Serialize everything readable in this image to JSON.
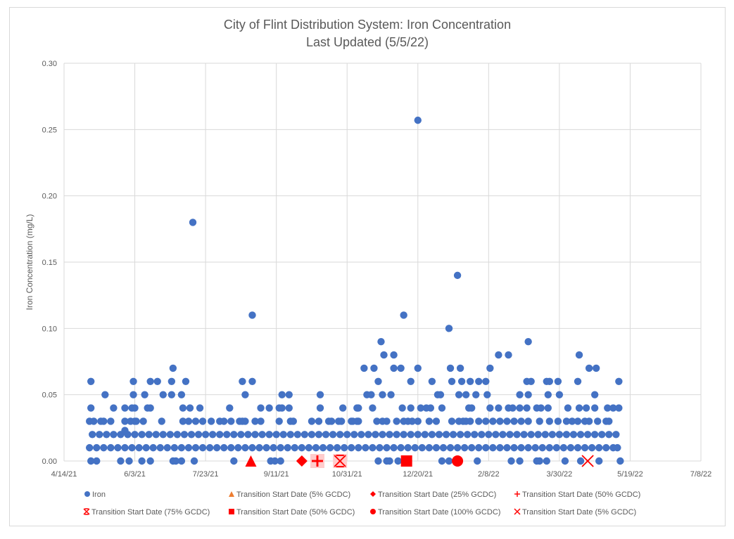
{
  "chart_data": {
    "type": "scatter",
    "title": "City of Flint Distribution System: Iron Concentration",
    "subtitle": "Last Updated (5/5/22)",
    "xlabel": "",
    "ylabel": "Iron Concentration (mg/L)",
    "xlim": [
      "4/14/21",
      "7/8/22"
    ],
    "ylim": [
      0,
      0.3
    ],
    "x_ticks": [
      "4/14/21",
      "6/3/21",
      "7/23/21",
      "9/11/21",
      "10/31/21",
      "12/20/21",
      "2/8/22",
      "3/30/22",
      "5/19/22",
      "7/8/22"
    ],
    "y_ticks": [
      "0.00",
      "0.05",
      "0.10",
      "0.15",
      "0.20",
      "0.25",
      "0.30"
    ],
    "grid": true,
    "legend_position": "bottom",
    "colors": {
      "iron": "#4472C4",
      "marker": "#FF0000",
      "legend_triangle": "#ED7D31",
      "highlight": "#FFCCCC",
      "grid": "#D9D9D9",
      "text": "#595959"
    },
    "iron_series": {
      "name": "Iron",
      "points_by_value": [
        {
          "y": 0.0,
          "x": [
            "5/3/21",
            "5/7/21",
            "5/24/21",
            "5/30/21",
            "6/8/21",
            "6/14/21",
            "6/30/21",
            "7/2/21",
            "7/6/21",
            "7/15/21",
            "8/12/21",
            "9/7/21",
            "9/10/21",
            "9/14/21",
            "11/22/21",
            "11/28/21",
            "11/30/21",
            "12/6/21",
            "1/6/22",
            "1/11/22",
            "1/31/22",
            "2/24/22",
            "3/2/22",
            "3/14/22",
            "3/16/22",
            "3/21/22",
            "4/3/22",
            "4/14/22",
            "4/27/22",
            "5/12/22"
          ]
        },
        {
          "y": 0.01,
          "x": [
            "5/2/21",
            "5/7/21",
            "5/12/21",
            "5/17/21",
            "5/22/21",
            "5/27/21",
            "6/1/21",
            "6/6/21",
            "6/11/21",
            "6/16/21",
            "6/21/21",
            "6/26/21",
            "7/1/21",
            "7/6/21",
            "7/11/21",
            "7/16/21",
            "7/21/21",
            "7/26/21",
            "7/31/21",
            "8/5/21",
            "8/10/21",
            "8/15/21",
            "8/20/21",
            "8/25/21",
            "8/30/21",
            "9/4/21",
            "9/9/21",
            "9/14/21",
            "9/19/21",
            "9/24/21",
            "9/29/21",
            "10/4/21",
            "10/9/21",
            "10/14/21",
            "10/19/21",
            "10/24/21",
            "10/29/21",
            "11/3/21",
            "11/8/21",
            "11/13/21",
            "11/18/21",
            "11/23/21",
            "11/28/21",
            "12/3/21",
            "12/8/21",
            "12/13/21",
            "12/18/21",
            "12/23/21",
            "12/28/21",
            "1/2/22",
            "1/7/22",
            "1/12/22",
            "1/17/22",
            "1/22/22",
            "1/27/22",
            "2/1/22",
            "2/6/22",
            "2/11/22",
            "2/16/22",
            "2/21/22",
            "2/26/22",
            "3/3/22",
            "3/8/22",
            "3/13/22",
            "3/18/22",
            "3/23/22",
            "3/28/22",
            "4/2/22",
            "4/7/22",
            "4/12/22",
            "4/17/22",
            "4/22/22",
            "4/27/22",
            "5/2/22",
            "5/7/22",
            "5/10/22"
          ]
        },
        {
          "y": 0.02,
          "x": [
            "5/4/21",
            "5/9/21",
            "5/14/21",
            "5/19/21",
            "5/24/21",
            "5/29/21",
            "6/3/21",
            "6/8/21",
            "6/13/21",
            "6/18/21",
            "6/23/21",
            "6/28/21",
            "7/3/21",
            "7/8/21",
            "7/13/21",
            "7/18/21",
            "7/23/21",
            "7/28/21",
            "8/2/21",
            "8/7/21",
            "8/12/21",
            "8/17/21",
            "8/22/21",
            "8/27/21",
            "9/1/21",
            "9/6/21",
            "9/11/21",
            "9/16/21",
            "9/21/21",
            "9/26/21",
            "10/1/21",
            "10/6/21",
            "10/11/21",
            "10/16/21",
            "10/21/21",
            "10/26/21",
            "10/31/21",
            "11/5/21",
            "11/10/21",
            "11/15/21",
            "11/20/21",
            "11/25/21",
            "11/30/21",
            "12/5/21",
            "12/10/21",
            "12/15/21",
            "12/20/21",
            "12/25/21",
            "12/30/21",
            "1/4/22",
            "1/9/22",
            "1/14/22",
            "1/19/22",
            "1/24/22",
            "1/29/22",
            "2/3/22",
            "2/8/22",
            "2/13/22",
            "2/18/22",
            "2/23/22",
            "2/28/22",
            "3/5/22",
            "3/10/22",
            "3/15/22",
            "3/20/22",
            "3/25/22",
            "3/30/22",
            "4/4/22",
            "4/9/22",
            "4/14/22",
            "4/19/22",
            "4/24/22",
            "4/29/22",
            "5/4/22",
            "5/9/22"
          ]
        },
        {
          "y": 0.023,
          "x": [
            "5/27/21"
          ]
        },
        {
          "y": 0.03,
          "x": [
            "5/2/21",
            "5/5/21",
            "5/10/21",
            "5/12/21",
            "5/17/21",
            "5/27/21",
            "5/31/21",
            "6/3/21",
            "6/4/21",
            "6/9/21",
            "6/22/21",
            "7/7/21",
            "7/11/21",
            "7/16/21",
            "7/21/21",
            "7/27/21",
            "8/2/21",
            "8/5/21",
            "8/10/21",
            "8/16/21",
            "8/18/21",
            "8/20/21",
            "8/27/21",
            "8/31/21",
            "9/13/21",
            "9/21/21",
            "9/23/21",
            "10/6/21",
            "10/11/21",
            "10/18/21",
            "10/20/21",
            "10/25/21",
            "10/27/21",
            "11/3/21",
            "11/4/21",
            "11/7/21",
            "11/8/21",
            "11/21/21",
            "11/25/21",
            "11/28/21",
            "12/5/21",
            "12/10/21",
            "12/13/21",
            "12/16/21",
            "12/20/21",
            "12/28/21",
            "1/2/22",
            "1/13/22",
            "1/18/22",
            "1/21/22",
            "1/23/22",
            "1/26/22",
            "2/1/22",
            "2/6/22",
            "2/11/22",
            "2/16/22",
            "2/21/22",
            "2/26/22",
            "3/3/22",
            "3/8/22",
            "3/16/22",
            "3/23/22",
            "3/29/22",
            "4/4/22",
            "4/8/22",
            "4/12/22",
            "4/17/22",
            "4/20/22",
            "4/26/22",
            "5/2/22",
            "5/4/22"
          ]
        },
        {
          "y": 0.04,
          "x": [
            "5/3/21",
            "5/19/21",
            "5/27/21",
            "6/1/21",
            "6/3/21",
            "6/12/21",
            "6/14/21",
            "7/7/21",
            "7/12/21",
            "7/19/21",
            "8/9/21",
            "8/31/21",
            "9/6/21",
            "9/13/21",
            "9/15/21",
            "9/20/21",
            "10/12/21",
            "10/28/21",
            "11/7/21",
            "11/8/21",
            "11/18/21",
            "12/9/21",
            "12/15/21",
            "12/22/21",
            "12/26/21",
            "12/29/21",
            "1/6/22",
            "1/25/22",
            "1/27/22",
            "2/9/22",
            "2/15/22",
            "2/22/22",
            "2/25/22",
            "3/2/22",
            "3/7/22",
            "3/14/22",
            "3/17/22",
            "3/22/22",
            "4/5/22",
            "4/13/22",
            "4/18/22",
            "4/24/22",
            "5/3/22",
            "5/7/22",
            "5/11/22"
          ]
        },
        {
          "y": 0.05,
          "x": [
            "5/13/21",
            "6/2/21",
            "6/10/21",
            "6/23/21",
            "6/29/21",
            "7/6/21",
            "8/20/21",
            "9/15/21",
            "9/20/21",
            "10/12/21",
            "11/14/21",
            "11/17/21",
            "11/25/21",
            "12/1/21",
            "1/3/22",
            "1/5/22",
            "1/18/22",
            "1/23/22",
            "1/30/22",
            "2/7/22",
            "3/2/22",
            "3/8/22",
            "3/22/22",
            "3/30/22",
            "4/24/22"
          ]
        },
        {
          "y": 0.06,
          "x": [
            "5/3/21",
            "6/2/21",
            "6/14/21",
            "6/19/21",
            "6/29/21",
            "7/9/21",
            "8/18/21",
            "8/25/21",
            "11/22/21",
            "12/15/21",
            "12/30/21",
            "1/13/22",
            "1/20/22",
            "1/26/22",
            "2/1/22",
            "2/6/22",
            "3/7/22",
            "3/10/22",
            "3/21/22",
            "3/23/22",
            "3/29/22",
            "4/12/22",
            "5/11/22"
          ]
        },
        {
          "y": 0.07,
          "x": [
            "6/30/21",
            "11/12/21",
            "11/19/21",
            "12/3/21",
            "12/8/21",
            "12/20/21",
            "1/12/22",
            "1/19/22",
            "2/9/22",
            "4/20/22",
            "4/25/22"
          ]
        },
        {
          "y": 0.08,
          "x": [
            "11/26/21",
            "12/3/21",
            "2/15/22",
            "2/22/22",
            "4/13/22"
          ]
        },
        {
          "y": 0.09,
          "x": [
            "11/24/21",
            "3/8/22"
          ]
        },
        {
          "y": 0.1,
          "x": [
            "1/11/22"
          ]
        },
        {
          "y": 0.11,
          "x": [
            "8/25/21",
            "12/10/21"
          ]
        },
        {
          "y": 0.14,
          "x": [
            "1/17/22"
          ]
        },
        {
          "y": 0.18,
          "x": [
            "7/14/21"
          ]
        },
        {
          "y": 0.257,
          "x": [
            "12/20/21"
          ]
        }
      ]
    },
    "transition_markers": [
      {
        "name": "Transition Start Date (5% GCDC)",
        "shape": "triangle",
        "x": "8/24/21",
        "y": 0
      },
      {
        "name": "Transition Start Date (25% GCDC)",
        "shape": "diamond",
        "x": "9/29/21",
        "y": 0
      },
      {
        "name": "Transition Start Date (50% GCDC)",
        "shape": "plus",
        "x": "10/10/21",
        "y": 0
      },
      {
        "name": "Transition Start Date (75% GCDC)",
        "shape": "star",
        "x": "10/26/21",
        "y": 0
      },
      {
        "name": "Transition Start Date (50% GCDC)",
        "shape": "square",
        "x": "12/12/21",
        "y": 0
      },
      {
        "name": "Transition Start Date (100% GCDC)",
        "shape": "circle",
        "x": "1/17/22",
        "y": 0
      },
      {
        "name": "Transition Start Date (5% GCDC)",
        "shape": "x",
        "x": "4/19/22",
        "y": 0
      }
    ],
    "legend": [
      {
        "label": "Iron",
        "shape": "circle"
      },
      {
        "label": "Transition Start Date (5% GCDC)",
        "shape": "triangle"
      },
      {
        "label": "Transition Start Date (25% GCDC)",
        "shape": "diamond"
      },
      {
        "label": "Transition Start Date (50% GCDC)",
        "shape": "plus"
      },
      {
        "label": "Transition Start Date (75% GCDC)",
        "shape": "star"
      },
      {
        "label": "Transition Start Date (50% GCDC)",
        "shape": "square"
      },
      {
        "label": "Transition Start Date (100% GCDC)",
        "shape": "circle"
      },
      {
        "label": "Transition Start Date (5% GCDC)",
        "shape": "x"
      }
    ]
  }
}
